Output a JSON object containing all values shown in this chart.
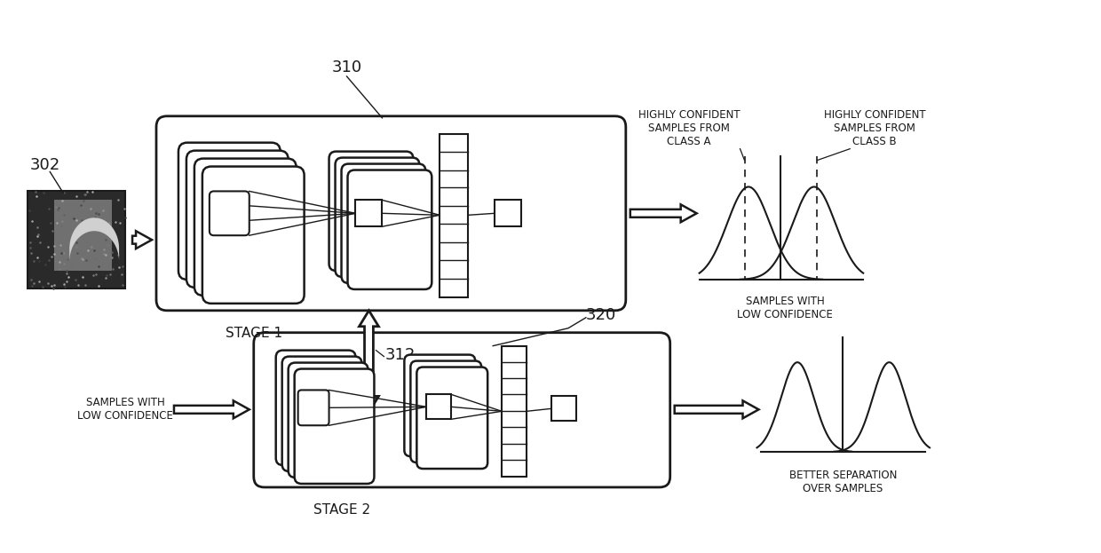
{
  "bg_color": "#ffffff",
  "line_color": "#1a1a1a",
  "label_302": "302",
  "label_310": "310",
  "label_312": "312",
  "label_320": "320",
  "label_stage1": "STAGE 1",
  "label_stage2": "STAGE 2",
  "text_highly_conf_a": "HIGHLY CONFIDENT\nSAMPLES FROM\nCLASS A",
  "text_highly_conf_b": "HIGHLY CONFIDENT\nSAMPLES FROM\nCLASS B",
  "text_low_conf_top": "SAMPLES WITH\nLOW CONFIDENCE",
  "text_low_conf_left": "SAMPLES WITH\nLOW CONFIDENCE",
  "text_better_sep": "BETTER SEPARATION\nOVER SAMPLES",
  "figsize": [
    12.4,
    6.23
  ],
  "dpi": 100
}
